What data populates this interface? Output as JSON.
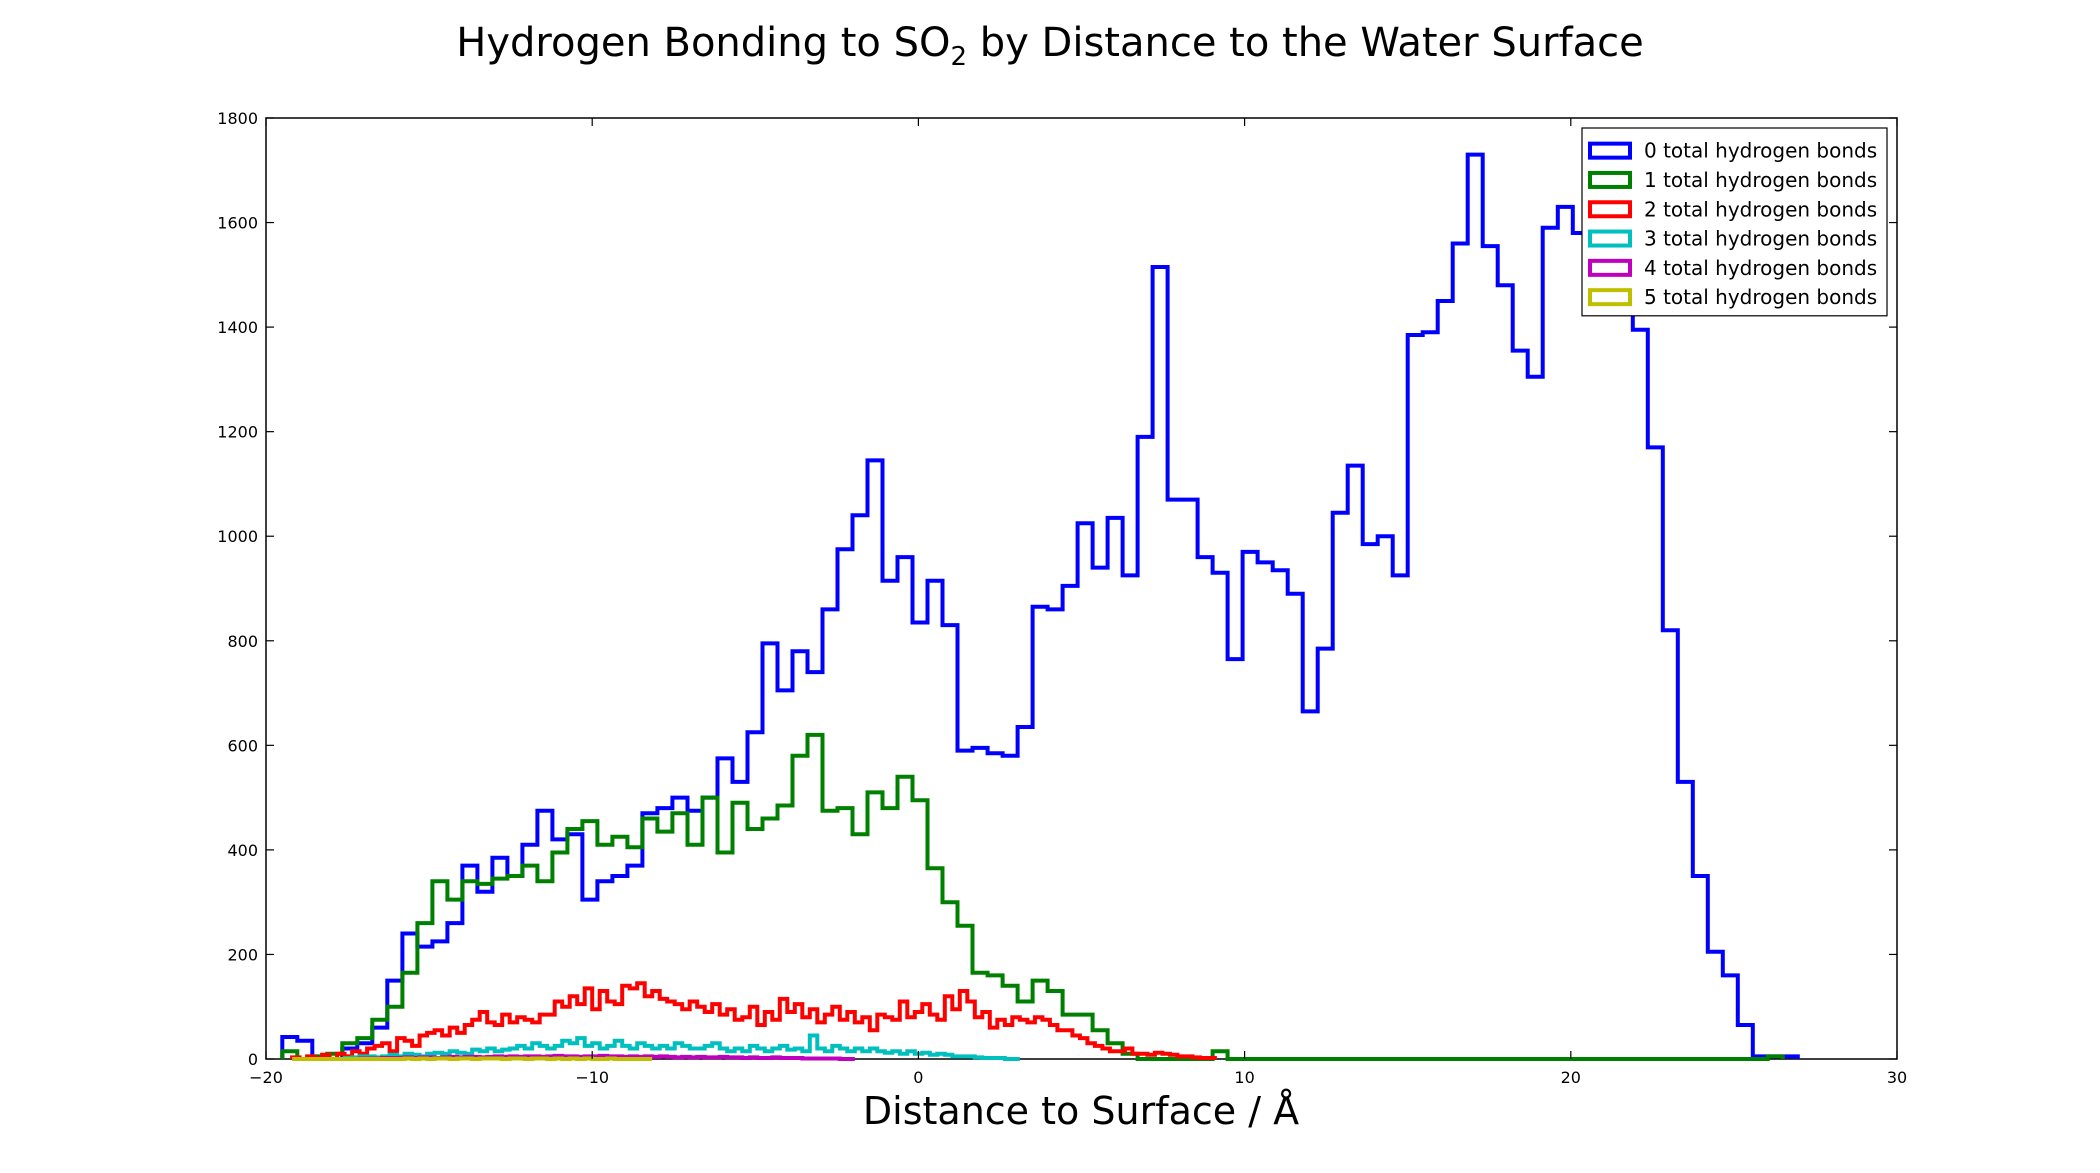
{
  "chart_data": {
    "type": "histogram-step",
    "title_main": "Hydrogen Bonding to SO",
    "title_sub": "2",
    "title_rest": " by Distance to the Water Surface",
    "xlabel": "Distance to Surface / Å",
    "ylabel": "",
    "xlim": [
      -20,
      30
    ],
    "ylim": [
      0,
      1800
    ],
    "xticks": [
      -20,
      -10,
      0,
      10,
      20,
      30
    ],
    "xtick_labels": [
      "−20",
      "−10",
      "0",
      "10",
      "20",
      "30"
    ],
    "yticks": [
      0,
      200,
      400,
      600,
      800,
      1000,
      1200,
      1400,
      1600,
      1800
    ],
    "ytick_labels": [
      "0",
      "200",
      "400",
      "600",
      "800",
      "1000",
      "1200",
      "1400",
      "1600",
      "1800"
    ],
    "legend_position": "top-right",
    "series": [
      {
        "name": "0 total hydrogen bonds",
        "color": "#0000ff",
        "x0": -19.5,
        "bin": 0.46,
        "values": [
          42,
          35,
          0,
          0,
          20,
          30,
          60,
          150,
          240,
          215,
          225,
          260,
          370,
          320,
          385,
          350,
          410,
          475,
          420,
          430,
          305,
          340,
          350,
          370,
          470,
          480,
          500,
          475,
          500,
          575,
          530,
          625,
          795,
          705,
          780,
          740,
          860,
          975,
          1040,
          1145,
          915,
          960,
          835,
          915,
          830,
          590,
          595,
          585,
          580,
          635,
          865,
          860,
          905,
          1025,
          940,
          1035,
          925,
          1190,
          1515,
          1070,
          1070,
          960,
          930,
          765,
          970,
          950,
          935,
          890,
          665,
          785,
          1045,
          1135,
          985,
          1000,
          925,
          1385,
          1390,
          1450,
          1560,
          1730,
          1555,
          1480,
          1355,
          1305,
          1590,
          1630,
          1580,
          1705,
          1710,
          1560,
          1395,
          1170,
          820,
          530,
          350,
          205,
          160,
          65,
          5,
          5,
          5
        ]
      },
      {
        "name": "1 total hydrogen bonds",
        "color": "#008000",
        "x0": -19.5,
        "bin": 0.46,
        "values": [
          15,
          0,
          5,
          10,
          30,
          40,
          75,
          100,
          165,
          260,
          340,
          305,
          340,
          335,
          345,
          350,
          370,
          340,
          395,
          440,
          455,
          410,
          425,
          405,
          460,
          435,
          470,
          410,
          500,
          395,
          490,
          440,
          460,
          485,
          580,
          620,
          475,
          480,
          430,
          510,
          480,
          540,
          495,
          365,
          300,
          255,
          165,
          160,
          140,
          110,
          150,
          130,
          85,
          85,
          55,
          30,
          10,
          0,
          0,
          0,
          0,
          0,
          15,
          0,
          0,
          0,
          0,
          0,
          0,
          0,
          0,
          0,
          0,
          0,
          0,
          0,
          0,
          0,
          0,
          0,
          0,
          0,
          0,
          0,
          0,
          0,
          0,
          0,
          0,
          0,
          0,
          0,
          0,
          0,
          0,
          0,
          0,
          0,
          0,
          5
        ]
      },
      {
        "name": "2 total hydrogen bonds",
        "color": "#ff0000",
        "x0": -19.2,
        "bin": 0.23,
        "values": [
          3,
          0,
          5,
          2,
          8,
          0,
          10,
          5,
          15,
          10,
          20,
          25,
          30,
          15,
          40,
          35,
          25,
          45,
          50,
          55,
          45,
          60,
          50,
          65,
          75,
          90,
          70,
          65,
          85,
          70,
          80,
          75,
          70,
          85,
          85,
          110,
          100,
          120,
          105,
          135,
          95,
          130,
          110,
          105,
          140,
          135,
          145,
          120,
          130,
          115,
          110,
          105,
          95,
          110,
          100,
          90,
          105,
          85,
          95,
          75,
          80,
          100,
          65,
          90,
          75,
          115,
          90,
          105,
          80,
          95,
          70,
          85,
          100,
          75,
          90,
          70,
          80,
          55,
          85,
          80,
          75,
          110,
          80,
          90,
          105,
          85,
          75,
          120,
          95,
          130,
          110,
          80,
          90,
          60,
          75,
          65,
          80,
          75,
          70,
          80,
          75,
          65,
          55,
          55,
          45,
          40,
          30,
          25,
          20,
          15,
          15,
          20,
          10,
          10,
          8,
          12,
          10,
          8,
          5,
          5,
          3,
          2,
          2
        ]
      },
      {
        "name": "3 total hydrogen bonds",
        "color": "#00bfbf",
        "x0": -19.2,
        "bin": 0.23,
        "values": [
          0,
          0,
          0,
          0,
          0,
          0,
          0,
          2,
          3,
          5,
          5,
          3,
          5,
          8,
          5,
          10,
          8,
          5,
          10,
          12,
          10,
          15,
          12,
          10,
          18,
          15,
          20,
          15,
          18,
          20,
          25,
          20,
          30,
          25,
          20,
          25,
          35,
          30,
          40,
          25,
          30,
          20,
          25,
          35,
          25,
          20,
          30,
          25,
          20,
          25,
          20,
          30,
          25,
          20,
          20,
          25,
          30,
          20,
          15,
          20,
          15,
          25,
          20,
          15,
          20,
          25,
          18,
          20,
          15,
          45,
          20,
          15,
          25,
          20,
          15,
          20,
          15,
          20,
          15,
          12,
          15,
          10,
          15,
          10,
          12,
          8,
          10,
          8,
          5,
          5,
          5,
          3,
          2,
          2,
          2,
          0,
          0
        ]
      },
      {
        "name": "4 total hydrogen bonds",
        "color": "#bf00bf",
        "x0": -19.2,
        "bin": 0.23,
        "values": [
          0,
          0,
          0,
          0,
          0,
          0,
          0,
          0,
          0,
          1,
          1,
          1,
          2,
          2,
          2,
          3,
          2,
          3,
          3,
          2,
          3,
          4,
          3,
          4,
          4,
          3,
          4,
          5,
          4,
          5,
          4,
          5,
          5,
          4,
          5,
          6,
          5,
          5,
          4,
          5,
          5,
          6,
          5,
          5,
          4,
          5,
          4,
          5,
          4,
          5,
          4,
          3,
          4,
          3,
          4,
          3,
          3,
          4,
          3,
          3,
          2,
          3,
          2,
          2,
          3,
          2,
          2,
          2,
          1,
          1,
          1,
          1,
          1,
          0,
          0
        ]
      },
      {
        "name": "5 total hydrogen bonds",
        "color": "#bfbf00",
        "x0": -19.2,
        "bin": 0.23,
        "values": [
          0,
          0,
          0,
          0,
          0,
          0,
          0,
          0,
          0,
          0,
          0,
          0,
          0,
          0,
          0,
          1,
          0,
          1,
          0,
          1,
          1,
          0,
          1,
          1,
          0,
          1,
          1,
          1,
          0,
          1,
          1,
          0,
          1,
          1,
          0,
          1,
          0,
          1,
          0,
          1,
          0,
          0,
          1,
          0,
          0,
          0,
          0,
          0
        ]
      }
    ]
  }
}
